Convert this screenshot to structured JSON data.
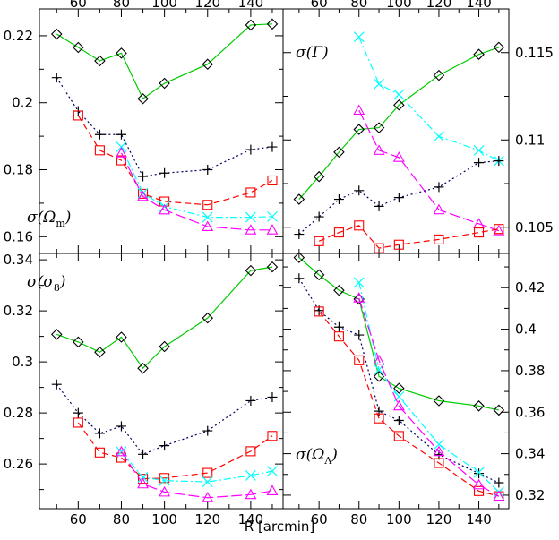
{
  "figure": {
    "xlabel": "R [arcmin]"
  },
  "chart_data": [
    {
      "type": "line",
      "panel_label": "σ(Ω_m)",
      "panel_label_main": "σ(Ω",
      "panel_label_sub": "m",
      "panel_label_close": ")",
      "xlim": [
        42,
        155
      ],
      "ylim": [
        0.155,
        0.228
      ],
      "x_ticks": [
        60,
        80,
        100,
        120,
        140
      ],
      "y_ticks": [
        0.16,
        0.18,
        0.2,
        0.22
      ],
      "y_tick_labels": [
        "0.16",
        "0.18",
        "0.2",
        "0.22"
      ],
      "series": [
        {
          "style": "black-plus-dotted",
          "color": "#000066",
          "marker": "plus",
          "dash": "2,3",
          "x": [
            50,
            60,
            70,
            80,
            90,
            100,
            120,
            140,
            150
          ],
          "y": [
            0.2075,
            0.1975,
            0.1905,
            0.1905,
            0.178,
            0.179,
            0.18,
            0.186,
            0.1868
          ]
        },
        {
          "style": "green-diamond-solid",
          "color": "#00cc00",
          "marker": "diamond",
          "dash": "",
          "x": [
            50,
            60,
            70,
            80,
            90,
            100,
            120,
            140,
            150
          ],
          "y": [
            0.2205,
            0.2165,
            0.2125,
            0.2148,
            0.2012,
            0.2058,
            0.2115,
            0.2232,
            0.2235
          ]
        },
        {
          "style": "red-square-dashed",
          "color": "#ff0000",
          "marker": "square",
          "dash": "7,4",
          "x": [
            60,
            70,
            80,
            90,
            100,
            120,
            140,
            150
          ],
          "y": [
            0.1962,
            0.1858,
            0.1828,
            0.1728,
            0.1705,
            0.1695,
            0.1732,
            0.1768
          ]
        },
        {
          "style": "cyan-cross-dashdot",
          "color": "#00ffff",
          "marker": "cross",
          "dash": "8,3,2,3",
          "x": [
            80,
            90,
            100,
            120,
            140,
            150
          ],
          "y": [
            0.1868,
            0.173,
            0.169,
            0.1658,
            0.1658,
            0.166
          ]
        },
        {
          "style": "magenta-triangle-longdash",
          "color": "#ff00ff",
          "marker": "triangle",
          "dash": "12,4",
          "x": [
            80,
            90,
            100,
            120,
            140,
            150
          ],
          "y": [
            0.185,
            0.172,
            0.168,
            0.163,
            0.162,
            0.162
          ]
        }
      ]
    },
    {
      "type": "line",
      "panel_label": "σ(Γ)",
      "panel_label_main": "σ(Γ)",
      "panel_label_sub": "",
      "panel_label_close": "",
      "xlim": [
        42,
        155
      ],
      "ylim": [
        0.1035,
        0.1175
      ],
      "x_ticks": [
        60,
        80,
        100,
        120,
        140
      ],
      "y_ticks": [
        0.105,
        0.11,
        0.115
      ],
      "y_tick_labels": [
        "0.105",
        "0.11",
        "0.115"
      ],
      "series": [
        {
          "style": "green-diamond-solid",
          "color": "#00cc00",
          "marker": "diamond",
          "dash": "",
          "x": [
            50,
            60,
            70,
            80,
            90,
            100,
            120,
            140,
            150
          ],
          "y": [
            0.1066,
            0.1079,
            0.1093,
            0.1106,
            0.1107,
            0.112,
            0.1137,
            0.1149,
            0.1153
          ]
        },
        {
          "style": "cyan-cross-dashdot",
          "color": "#00ffff",
          "marker": "cross",
          "dash": "8,3,2,3",
          "x": [
            80,
            90,
            100,
            120,
            140,
            150
          ],
          "y": [
            0.1159,
            0.1132,
            0.1126,
            0.1102,
            0.1094,
            0.1088
          ]
        },
        {
          "style": "magenta-triangle-longdash",
          "color": "#ff00ff",
          "marker": "triangle",
          "dash": "12,4",
          "x": [
            80,
            90,
            100,
            120,
            140,
            150
          ],
          "y": [
            0.1117,
            0.1094,
            0.109,
            0.106,
            0.1052,
            0.1048
          ]
        },
        {
          "style": "black-plus-dotted",
          "color": "#000066",
          "marker": "plus",
          "dash": "2,3",
          "x": [
            50,
            60,
            70,
            80,
            90,
            100,
            120,
            140,
            150
          ],
          "y": [
            0.1046,
            0.1056,
            0.1066,
            0.1071,
            0.1062,
            0.1067,
            0.1073,
            0.1087,
            0.1088
          ]
        },
        {
          "style": "red-square-dashed",
          "color": "#ff0000",
          "marker": "square",
          "dash": "7,4",
          "x": [
            60,
            70,
            80,
            90,
            100,
            120,
            140,
            150
          ],
          "y": [
            0.1042,
            0.1047,
            0.1051,
            0.1038,
            0.104,
            0.1043,
            0.1047,
            0.1049
          ]
        }
      ]
    },
    {
      "type": "line",
      "panel_label": "σ(σ_8)",
      "panel_label_main": "σ(σ",
      "panel_label_sub": "8",
      "panel_label_close": ")",
      "xlim": [
        42,
        155
      ],
      "ylim": [
        0.2425,
        0.3425
      ],
      "x_ticks": [
        60,
        80,
        100,
        120,
        140
      ],
      "y_ticks": [
        0.26,
        0.28,
        0.3,
        0.32,
        0.34
      ],
      "y_tick_labels": [
        "0.26",
        "0.28",
        "0.3",
        "0.32",
        "0.34"
      ],
      "series": [
        {
          "style": "green-diamond-solid",
          "color": "#00cc00",
          "marker": "diamond",
          "dash": "",
          "x": [
            50,
            60,
            70,
            80,
            90,
            100,
            120,
            140,
            150
          ],
          "y": [
            0.3108,
            0.3078,
            0.3038,
            0.3097,
            0.2975,
            0.306,
            0.3172,
            0.3358,
            0.3372
          ]
        },
        {
          "style": "black-plus-dotted",
          "color": "#000066",
          "marker": "plus",
          "dash": "2,3",
          "x": [
            50,
            60,
            70,
            80,
            90,
            100,
            120,
            140,
            150
          ],
          "y": [
            0.2912,
            0.28,
            0.272,
            0.2748,
            0.2638,
            0.2672,
            0.273,
            0.2848,
            0.2862
          ]
        },
        {
          "style": "red-square-dashed",
          "color": "#ff0000",
          "marker": "square",
          "dash": "7,4",
          "x": [
            60,
            70,
            80,
            90,
            100,
            120,
            140,
            150
          ],
          "y": [
            0.2762,
            0.2645,
            0.2625,
            0.2542,
            0.2545,
            0.2565,
            0.265,
            0.271
          ]
        },
        {
          "style": "cyan-cross-dashdot",
          "color": "#00ffff",
          "marker": "cross",
          "dash": "8,3,2,3",
          "x": [
            80,
            90,
            100,
            120,
            140,
            150
          ],
          "y": [
            0.2648,
            0.2548,
            0.2535,
            0.253,
            0.2555,
            0.2572
          ]
        },
        {
          "style": "magenta-triangle-longdash",
          "color": "#ff00ff",
          "marker": "triangle",
          "dash": "12,4",
          "x": [
            80,
            90,
            100,
            120,
            140,
            150
          ],
          "y": [
            0.2648,
            0.2522,
            0.249,
            0.2468,
            0.248,
            0.2495
          ]
        }
      ]
    },
    {
      "type": "line",
      "panel_label": "σ(Ω_Λ)",
      "panel_label_main": "σ(Ω",
      "panel_label_sub": "Λ",
      "panel_label_close": ")",
      "xlim": [
        42,
        155
      ],
      "ylim": [
        0.3135,
        0.4365
      ],
      "x_ticks": [
        60,
        80,
        100,
        120,
        140
      ],
      "y_ticks": [
        0.32,
        0.34,
        0.36,
        0.38,
        0.4,
        0.42
      ],
      "y_tick_labels": [
        "0.32",
        "0.34",
        "0.36",
        "0.38",
        "0.4",
        "0.42"
      ],
      "series": [
        {
          "style": "green-diamond-solid",
          "color": "#00cc00",
          "marker": "diamond",
          "dash": "",
          "x": [
            50,
            60,
            70,
            80,
            90,
            100,
            120,
            140,
            150
          ],
          "y": [
            0.4345,
            0.4262,
            0.4187,
            0.4145,
            0.3772,
            0.3715,
            0.3655,
            0.363,
            0.361
          ]
        },
        {
          "style": "black-plus-dotted",
          "color": "#000066",
          "marker": "plus",
          "dash": "2,3",
          "x": [
            50,
            60,
            70,
            80,
            90,
            100,
            120,
            140,
            150
          ],
          "y": [
            0.4245,
            0.409,
            0.401,
            0.3972,
            0.3605,
            0.356,
            0.3395,
            0.3305,
            0.326
          ]
        },
        {
          "style": "red-square-dashed",
          "color": "#ff0000",
          "marker": "square",
          "dash": "7,4",
          "x": [
            60,
            70,
            80,
            90,
            100,
            120,
            140,
            150
          ],
          "y": [
            0.4085,
            0.3965,
            0.385,
            0.357,
            0.3485,
            0.3355,
            0.322,
            0.3195
          ]
        },
        {
          "style": "cyan-cross-dashdot",
          "color": "#00ffff",
          "marker": "cross",
          "dash": "8,3,2,3",
          "x": [
            80,
            90,
            100,
            120,
            140,
            150
          ],
          "y": [
            0.4225,
            0.3805,
            0.3675,
            0.3445,
            0.331,
            0.3215
          ]
        },
        {
          "style": "magenta-triangle-longdash",
          "color": "#ff00ff",
          "marker": "triangle",
          "dash": "12,4",
          "x": [
            80,
            90,
            100,
            120,
            140,
            150
          ],
          "y": [
            0.415,
            0.385,
            0.363,
            0.341,
            0.325,
            0.3195
          ]
        }
      ]
    }
  ]
}
